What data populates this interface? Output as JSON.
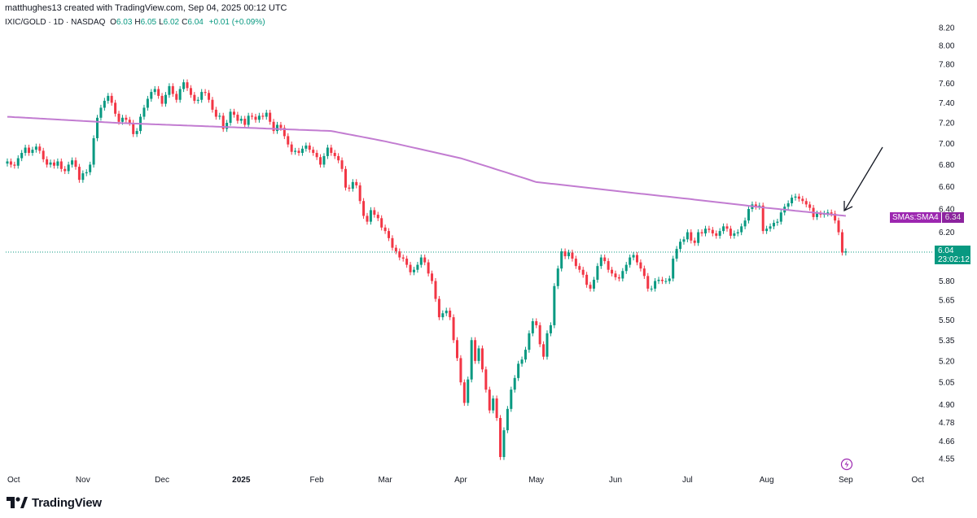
{
  "header": {
    "attribution": "matthughes13 created with TradingView.com, Sep 04, 2025 00:12 UTC",
    "symbol": "IXIC/GOLD · 1D · NASDAQ",
    "ohlc": [
      {
        "key": "O",
        "value": "6.03"
      },
      {
        "key": "H",
        "value": "6.05"
      },
      {
        "key": "L",
        "value": "6.02"
      },
      {
        "key": "C",
        "value": "6.04"
      }
    ],
    "change": "+0.01 (+0.09%)"
  },
  "price_scale": {
    "sma_label": "SMAs:SMA4",
    "sma_value": "6.34",
    "last_price": "6.04",
    "countdown": "23:02:12"
  },
  "footer": {
    "brand": "TradingView"
  },
  "colors": {
    "up": "#089981",
    "down": "#f23645",
    "sma": "#9c27b0",
    "sma_line": "#c27cd1",
    "grid": "#f0f3fa",
    "axis_text": "#131722"
  },
  "chart_data": {
    "type": "candlestick",
    "title": "IXIC/GOLD · 1D · NASDAQ",
    "yscale": "log",
    "ylim": [
      4.5,
      8.3
    ],
    "y_ticks": [
      8.2,
      8.0,
      7.8,
      7.6,
      7.4,
      7.2,
      7.0,
      6.8,
      6.6,
      6.4,
      6.2,
      6.04,
      5.8,
      5.65,
      5.5,
      5.35,
      5.2,
      5.05,
      4.9,
      4.78,
      4.66,
      4.55
    ],
    "y_tick_labels": [
      "8.20",
      "8.00",
      "7.80",
      "7.60",
      "7.40",
      "7.20",
      "7.00",
      "6.80",
      "6.60",
      "6.40",
      "6.20",
      "6.04",
      "5.80",
      "5.65",
      "5.50",
      "5.35",
      "5.20",
      "5.05",
      "4.90",
      "4.78",
      "4.66",
      "4.55"
    ],
    "x_tick_labels": [
      "Oct",
      "Nov",
      "Dec",
      "2025",
      "Feb",
      "Mar",
      "Apr",
      "May",
      "Jun",
      "Jul",
      "Aug",
      "Sep",
      "Oct"
    ],
    "x_tick_bar_index": [
      0,
      21,
      43,
      65,
      86,
      105,
      126,
      147,
      169,
      189,
      211,
      233,
      253
    ],
    "last_bar_index": 235,
    "series": [
      {
        "name": "IXIC/GOLD",
        "kind": "ohlc",
        "closes": [
          6.83,
          6.8,
          6.79,
          6.86,
          6.91,
          6.96,
          6.91,
          6.94,
          6.97,
          6.93,
          6.85,
          6.8,
          6.82,
          6.79,
          6.83,
          6.76,
          6.74,
          6.8,
          6.84,
          6.78,
          6.66,
          6.72,
          6.73,
          6.8,
          7.05,
          7.25,
          7.35,
          7.42,
          7.47,
          7.4,
          7.29,
          7.21,
          7.25,
          7.23,
          7.2,
          7.09,
          7.12,
          7.26,
          7.35,
          7.44,
          7.51,
          7.54,
          7.47,
          7.39,
          7.48,
          7.57,
          7.49,
          7.43,
          7.54,
          7.61,
          7.55,
          7.48,
          7.42,
          7.43,
          7.51,
          7.5,
          7.43,
          7.33,
          7.26,
          7.27,
          7.14,
          7.2,
          7.31,
          7.28,
          7.22,
          7.24,
          7.18,
          7.27,
          7.26,
          7.23,
          7.27,
          7.26,
          7.3,
          7.21,
          7.12,
          7.18,
          7.15,
          7.07,
          6.99,
          6.92,
          6.93,
          6.91,
          6.95,
          6.98,
          6.94,
          6.91,
          6.87,
          6.8,
          6.88,
          6.96,
          6.91,
          6.88,
          6.84,
          6.76,
          6.59,
          6.58,
          6.64,
          6.61,
          6.47,
          6.34,
          6.29,
          6.39,
          6.35,
          6.32,
          6.24,
          6.21,
          6.15,
          6.07,
          6.04,
          5.99,
          5.98,
          5.93,
          5.87,
          5.89,
          5.93,
          5.99,
          5.95,
          5.86,
          5.8,
          5.66,
          5.52,
          5.55,
          5.57,
          5.52,
          5.35,
          5.22,
          5.05,
          4.91,
          5.07,
          5.35,
          5.2,
          5.29,
          5.14,
          5.0,
          4.86,
          4.94,
          4.81,
          4.56,
          4.73,
          4.87,
          5.0,
          5.08,
          5.18,
          5.21,
          5.28,
          5.4,
          5.49,
          5.46,
          5.32,
          5.23,
          5.4,
          5.46,
          5.76,
          5.9,
          6.04,
          6.0,
          6.03,
          5.98,
          5.92,
          5.89,
          5.85,
          5.77,
          5.74,
          5.81,
          5.92,
          5.99,
          5.96,
          5.89,
          5.86,
          5.83,
          5.82,
          5.88,
          5.93,
          5.99,
          6.01,
          5.95,
          5.9,
          5.84,
          5.74,
          5.74,
          5.8,
          5.81,
          5.8,
          5.8,
          5.82,
          5.98,
          6.06,
          6.12,
          6.14,
          6.2,
          6.13,
          6.11,
          6.2,
          6.19,
          6.23,
          6.22,
          6.19,
          6.17,
          6.21,
          6.25,
          6.23,
          6.17,
          6.19,
          6.2,
          6.25,
          6.3,
          6.4,
          6.44,
          6.42,
          6.43,
          6.21,
          6.23,
          6.25,
          6.28,
          6.29,
          6.37,
          6.42,
          6.45,
          6.5,
          6.51,
          6.49,
          6.47,
          6.44,
          6.41,
          6.33,
          6.36,
          6.35,
          6.36,
          6.37,
          6.36,
          6.3,
          6.2,
          6.03,
          6.04
        ]
      },
      {
        "name": "SMAs:SMA4",
        "kind": "line",
        "label_value": 6.34,
        "points": [
          [
            0,
            7.26
          ],
          [
            30,
            7.2
          ],
          [
            60,
            7.16
          ],
          [
            90,
            7.12
          ],
          [
            105,
            7.02
          ],
          [
            126,
            6.86
          ],
          [
            147,
            6.64
          ],
          [
            169,
            6.56
          ],
          [
            189,
            6.49
          ],
          [
            211,
            6.41
          ],
          [
            233,
            6.34
          ]
        ]
      }
    ],
    "annotations": [
      {
        "type": "arrow",
        "description": "arrow pointing at SMA line near Sep"
      }
    ],
    "grid": false,
    "legend": "top-left"
  }
}
